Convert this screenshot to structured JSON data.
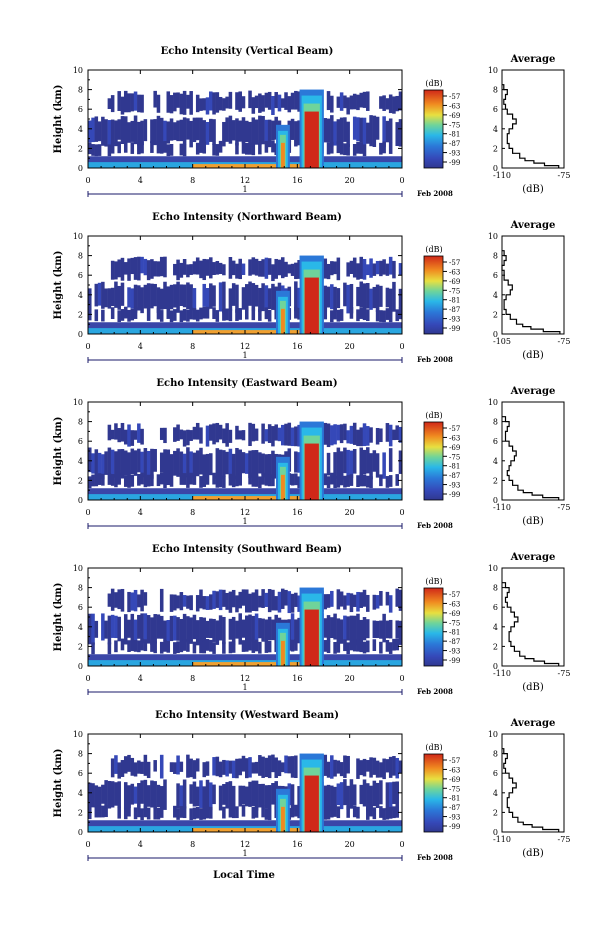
{
  "figure": {
    "footer_xlabel": "Local Time",
    "date_label": "Feb 2008",
    "day_label": "1"
  },
  "chart_data": [
    {
      "type": "heatmap",
      "title": "Echo Intensity (Vertical Beam)",
      "ylabel": "Height (km)",
      "xlabel": "Local Time",
      "xlim": [
        0,
        24
      ],
      "ylim": [
        0,
        10
      ],
      "xticks": [
        "0",
        "4",
        "8",
        "12",
        "16",
        "20",
        "0"
      ],
      "yticks": [
        "0",
        "2",
        "4",
        "6",
        "8",
        "10"
      ],
      "colorbar": {
        "unit": "(dB)",
        "ticks": [
          "-57",
          "-63",
          "-69",
          "-75",
          "-81",
          "-87",
          "-93",
          "-99"
        ],
        "range": [
          -99,
          -57
        ]
      },
      "features": [
        {
          "name": "boundary layer",
          "height_km": [
            0,
            1
          ],
          "time_h": [
            0,
            24
          ],
          "db": -75
        },
        {
          "name": "convective cell 1",
          "time_h": [
            14.6,
            15.2
          ],
          "height_km": [
            0,
            4.2
          ],
          "db": -63
        },
        {
          "name": "convective cell 2",
          "time_h": [
            16.4,
            17.8
          ],
          "height_km": [
            0,
            7.8
          ],
          "db": -60
        },
        {
          "name": "mid cloud layer",
          "height_km": [
            2.5,
            5.0
          ],
          "db": -93
        },
        {
          "name": "upper layer",
          "height_km": [
            5.8,
            7.5
          ],
          "db": -96
        }
      ],
      "average_profile": {
        "title": "Average",
        "xlabel": "(dB)",
        "xticks": [
          "-110",
          "-75"
        ],
        "xlim": [
          -110,
          -75
        ],
        "ylim": [
          0,
          10
        ],
        "height_km": [
          0,
          0.25,
          0.5,
          0.75,
          1,
          1.5,
          2,
          2.5,
          3,
          3.5,
          4,
          4.5,
          5,
          5.5,
          6,
          6.5,
          7,
          7.5,
          8,
          8.5
        ],
        "db": [
          -78,
          -86,
          -92,
          -97,
          -100,
          -104,
          -106,
          -107,
          -107,
          -106,
          -104,
          -102,
          -104,
          -107,
          -108,
          -109,
          -108,
          -107,
          -109,
          -110
        ]
      }
    },
    {
      "type": "heatmap",
      "title": "Echo Intensity (Northward Beam)",
      "ylabel": "Height (km)",
      "xlabel": "Local Time",
      "xlim": [
        0,
        24
      ],
      "ylim": [
        0,
        10
      ],
      "xticks": [
        "0",
        "4",
        "8",
        "12",
        "16",
        "20",
        "0"
      ],
      "yticks": [
        "0",
        "2",
        "4",
        "6",
        "8",
        "10"
      ],
      "colorbar": {
        "unit": "(dB)",
        "ticks": [
          "-57",
          "-63",
          "-69",
          "-75",
          "-81",
          "-87",
          "-93",
          "-99"
        ],
        "range": [
          -99,
          -57
        ]
      },
      "features": [
        {
          "name": "boundary layer",
          "height_km": [
            0,
            1
          ],
          "time_h": [
            0,
            24
          ],
          "db": -75
        },
        {
          "name": "convective cell 1",
          "time_h": [
            14.6,
            15.2
          ],
          "height_km": [
            0,
            4.2
          ],
          "db": -63
        },
        {
          "name": "convective cell 2",
          "time_h": [
            16.4,
            17.8
          ],
          "height_km": [
            0,
            7.8
          ],
          "db": -60
        },
        {
          "name": "mid cloud layer",
          "height_km": [
            2.5,
            5.0
          ],
          "db": -93
        },
        {
          "name": "upper layer",
          "height_km": [
            5.8,
            7.5
          ],
          "db": -96
        }
      ],
      "average_profile": {
        "title": "Average",
        "xlabel": "(dB)",
        "xticks": [
          "-105",
          "-75"
        ],
        "xlim": [
          -105,
          -75
        ],
        "ylim": [
          0,
          10
        ],
        "height_km": [
          0,
          0.25,
          0.5,
          0.75,
          1,
          1.5,
          2,
          2.5,
          3,
          3.5,
          4,
          4.5,
          5,
          5.5,
          6,
          6.5,
          7,
          7.5,
          8,
          8.5
        ],
        "db": [
          -77,
          -85,
          -91,
          -95,
          -98,
          -101,
          -103,
          -104,
          -104,
          -103,
          -101,
          -100,
          -102,
          -104,
          -104,
          -105,
          -104,
          -103,
          -104,
          -105
        ]
      }
    },
    {
      "type": "heatmap",
      "title": "Echo Intensity (Eastward Beam)",
      "ylabel": "Height (km)",
      "xlabel": "Local Time",
      "xlim": [
        0,
        24
      ],
      "ylim": [
        0,
        10
      ],
      "xticks": [
        "0",
        "4",
        "8",
        "12",
        "16",
        "20",
        "0"
      ],
      "yticks": [
        "0",
        "2",
        "4",
        "6",
        "8",
        "10"
      ],
      "colorbar": {
        "unit": "(dB)",
        "ticks": [
          "-57",
          "-63",
          "-69",
          "-75",
          "-81",
          "-87",
          "-93",
          "-99"
        ],
        "range": [
          -99,
          -57
        ]
      },
      "features": [
        {
          "name": "boundary layer",
          "height_km": [
            0,
            1
          ],
          "time_h": [
            0,
            24
          ],
          "db": -75
        },
        {
          "name": "convective cell 1",
          "time_h": [
            14.6,
            15.2
          ],
          "height_km": [
            0,
            4.2
          ],
          "db": -63
        },
        {
          "name": "convective cell 2",
          "time_h": [
            16.4,
            17.8
          ],
          "height_km": [
            0,
            7.8
          ],
          "db": -60
        },
        {
          "name": "mid cloud layer",
          "height_km": [
            2.5,
            5.0
          ],
          "db": -93
        },
        {
          "name": "upper layer",
          "height_km": [
            5.8,
            7.5
          ],
          "db": -96
        }
      ],
      "average_profile": {
        "title": "Average",
        "xlabel": "(dB)",
        "xticks": [
          "-110",
          "-75"
        ],
        "xlim": [
          -110,
          -75
        ],
        "ylim": [
          0,
          10
        ],
        "height_km": [
          0,
          0.25,
          0.5,
          0.75,
          1,
          1.5,
          2,
          2.5,
          3,
          3.5,
          4,
          4.5,
          5,
          5.5,
          6,
          6.5,
          7,
          7.5,
          8,
          8.5
        ],
        "db": [
          -78,
          -87,
          -93,
          -98,
          -101,
          -104,
          -106,
          -107,
          -106,
          -105,
          -103,
          -102,
          -104,
          -106,
          -108,
          -108,
          -107,
          -106,
          -108,
          -110
        ]
      }
    },
    {
      "type": "heatmap",
      "title": "Echo Intensity (Southward Beam)",
      "ylabel": "Height (km)",
      "xlabel": "Local Time",
      "xlim": [
        0,
        24
      ],
      "ylim": [
        0,
        10
      ],
      "xticks": [
        "0",
        "4",
        "8",
        "12",
        "16",
        "20",
        "0"
      ],
      "yticks": [
        "0",
        "2",
        "4",
        "6",
        "8",
        "10"
      ],
      "colorbar": {
        "unit": "(dB)",
        "ticks": [
          "-57",
          "-63",
          "-69",
          "-75",
          "-81",
          "-87",
          "-93",
          "-99"
        ],
        "range": [
          -99,
          -57
        ]
      },
      "features": [
        {
          "name": "boundary layer",
          "height_km": [
            0,
            1
          ],
          "time_h": [
            0,
            24
          ],
          "db": -75
        },
        {
          "name": "convective cell 1",
          "time_h": [
            14.6,
            15.2
          ],
          "height_km": [
            0,
            4.2
          ],
          "db": -63
        },
        {
          "name": "convective cell 2",
          "time_h": [
            16.4,
            17.8
          ],
          "height_km": [
            0,
            7.8
          ],
          "db": -60
        },
        {
          "name": "mid cloud layer",
          "height_km": [
            2.5,
            5.0
          ],
          "db": -93
        },
        {
          "name": "upper layer",
          "height_km": [
            5.8,
            7.5
          ],
          "db": -96
        }
      ],
      "average_profile": {
        "title": "Average",
        "xlabel": "(dB)",
        "xticks": [
          "-110",
          "-75"
        ],
        "xlim": [
          -110,
          -75
        ],
        "ylim": [
          0,
          10
        ],
        "height_km": [
          0,
          0.25,
          0.5,
          0.75,
          1,
          1.5,
          2,
          2.5,
          3,
          3.5,
          4,
          4.5,
          5,
          5.5,
          6,
          6.5,
          7,
          7.5,
          8,
          8.5
        ],
        "db": [
          -78,
          -86,
          -92,
          -97,
          -100,
          -103,
          -105,
          -106,
          -106,
          -105,
          -103,
          -101,
          -103,
          -105,
          -107,
          -108,
          -107,
          -106,
          -108,
          -110
        ]
      }
    },
    {
      "type": "heatmap",
      "title": "Echo Intensity (Westward Beam)",
      "ylabel": "Height (km)",
      "xlabel": "Local Time",
      "xlim": [
        0,
        24
      ],
      "ylim": [
        0,
        10
      ],
      "xticks": [
        "0",
        "4",
        "8",
        "12",
        "16",
        "20",
        "0"
      ],
      "yticks": [
        "0",
        "2",
        "4",
        "6",
        "8",
        "10"
      ],
      "colorbar": {
        "unit": "(dB)",
        "ticks": [
          "-57",
          "-63",
          "-69",
          "-75",
          "-81",
          "-87",
          "-93",
          "-99"
        ],
        "range": [
          -99,
          -57
        ]
      },
      "features": [
        {
          "name": "boundary layer",
          "height_km": [
            0,
            1
          ],
          "time_h": [
            0,
            24
          ],
          "db": -75
        },
        {
          "name": "convective cell 1",
          "time_h": [
            14.6,
            15.2
          ],
          "height_km": [
            0,
            4.2
          ],
          "db": -63
        },
        {
          "name": "convective cell 2",
          "time_h": [
            16.4,
            17.8
          ],
          "height_km": [
            0,
            7.8
          ],
          "db": -60
        },
        {
          "name": "mid cloud layer",
          "height_km": [
            2.5,
            5.0
          ],
          "db": -93
        },
        {
          "name": "upper layer",
          "height_km": [
            5.8,
            7.5
          ],
          "db": -96
        }
      ],
      "average_profile": {
        "title": "Average",
        "xlabel": "(dB)",
        "xticks": [
          "-110",
          "-75"
        ],
        "xlim": [
          -110,
          -75
        ],
        "ylim": [
          0,
          10
        ],
        "height_km": [
          0,
          0.25,
          0.5,
          0.75,
          1,
          1.5,
          2,
          2.5,
          3,
          3.5,
          4,
          4.5,
          5,
          5.5,
          6,
          6.5,
          7,
          7.5,
          8,
          8.5
        ],
        "db": [
          -78,
          -87,
          -93,
          -98,
          -101,
          -104,
          -106,
          -107,
          -107,
          -106,
          -104,
          -102,
          -104,
          -106,
          -108,
          -109,
          -108,
          -107,
          -109,
          -110
        ]
      }
    }
  ]
}
